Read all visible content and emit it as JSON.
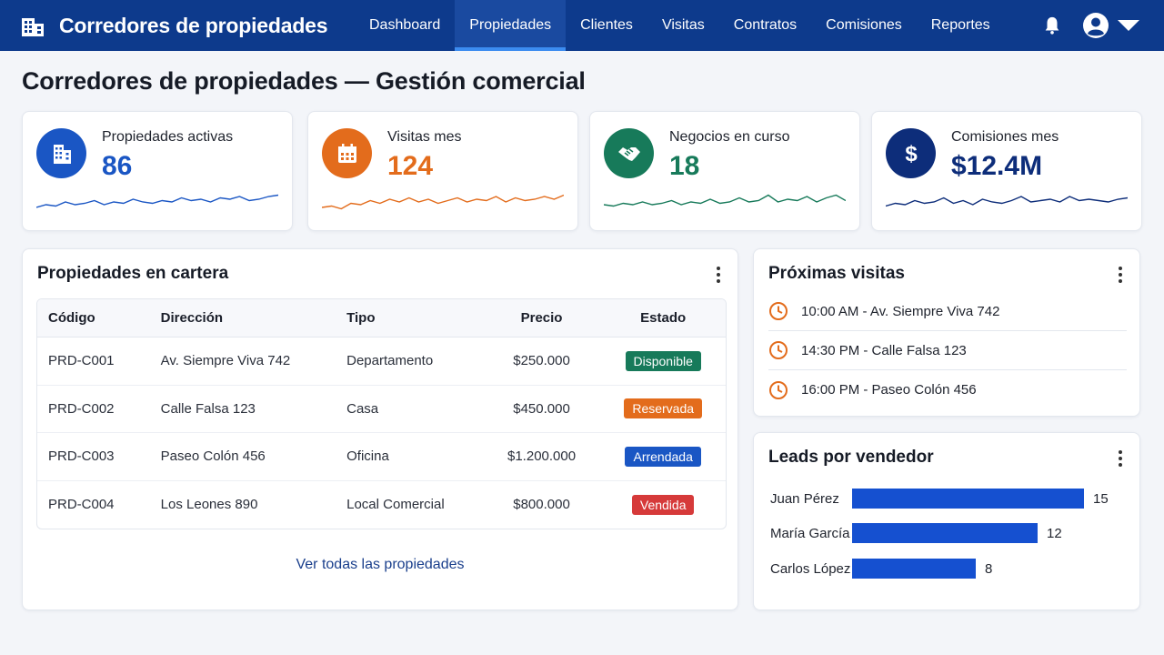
{
  "app": {
    "title": "Corredores de propiedades"
  },
  "nav": [
    {
      "label": "Dashboard",
      "active": false
    },
    {
      "label": "Propiedades",
      "active": true
    },
    {
      "label": "Clientes",
      "active": false
    },
    {
      "label": "Visitas",
      "active": false
    },
    {
      "label": "Contratos",
      "active": false
    },
    {
      "label": "Comisiones",
      "active": false
    },
    {
      "label": "Reportes",
      "active": false
    }
  ],
  "page": {
    "title": "Corredores de propiedades — Gestión comercial"
  },
  "kpis": [
    {
      "label": "Propiedades activas",
      "value": "86",
      "icon": "building-icon",
      "color": "#1a56c4",
      "spark": [
        0.3,
        0.4,
        0.35,
        0.5,
        0.4,
        0.45,
        0.55,
        0.4,
        0.5,
        0.45,
        0.6,
        0.5,
        0.45,
        0.55,
        0.5,
        0.65,
        0.55,
        0.6,
        0.5,
        0.65,
        0.6,
        0.7,
        0.55,
        0.6,
        0.7,
        0.75
      ]
    },
    {
      "label": "Visitas mes",
      "value": "124",
      "icon": "calendar-icon",
      "color": "#e36c1c",
      "spark": [
        0.3,
        0.35,
        0.25,
        0.45,
        0.4,
        0.55,
        0.45,
        0.6,
        0.5,
        0.65,
        0.5,
        0.6,
        0.45,
        0.55,
        0.65,
        0.5,
        0.6,
        0.55,
        0.7,
        0.5,
        0.65,
        0.55,
        0.6,
        0.7,
        0.6,
        0.75
      ]
    },
    {
      "label": "Negocios en curso",
      "value": "18",
      "icon": "handshake-icon",
      "color": "#177a5a",
      "spark": [
        0.4,
        0.35,
        0.45,
        0.4,
        0.5,
        0.4,
        0.45,
        0.55,
        0.4,
        0.5,
        0.45,
        0.6,
        0.45,
        0.5,
        0.65,
        0.5,
        0.55,
        0.75,
        0.5,
        0.6,
        0.55,
        0.7,
        0.5,
        0.65,
        0.75,
        0.55
      ]
    },
    {
      "label": "Comisiones mes",
      "value": "$12.4M",
      "icon": "dollar-icon",
      "color": "#0d2d7a",
      "spark": [
        0.35,
        0.45,
        0.4,
        0.55,
        0.45,
        0.5,
        0.65,
        0.45,
        0.55,
        0.4,
        0.6,
        0.5,
        0.45,
        0.55,
        0.7,
        0.5,
        0.55,
        0.6,
        0.5,
        0.7,
        0.55,
        0.6,
        0.55,
        0.5,
        0.6,
        0.65
      ]
    }
  ],
  "properties": {
    "title": "Propiedades en cartera",
    "columns": [
      "Código",
      "Dirección",
      "Tipo",
      "Precio",
      "Estado"
    ],
    "rows": [
      {
        "code": "PRD-C001",
        "address": "Av. Siempre Viva 742",
        "type": "Departamento",
        "price": "$250.000",
        "status": "Disponible",
        "status_color": "#177a5a"
      },
      {
        "code": "PRD-C002",
        "address": "Calle Falsa 123",
        "type": "Casa",
        "price": "$450.000",
        "status": "Reservada",
        "status_color": "#e36c1c"
      },
      {
        "code": "PRD-C003",
        "address": "Paseo Colón 456",
        "type": "Oficina",
        "price": "$1.200.000",
        "status": "Arrendada",
        "status_color": "#1a56c4"
      },
      {
        "code": "PRD-C004",
        "address": "Los Leones 890",
        "type": "Local Comercial",
        "price": "$800.000",
        "status": "Vendida",
        "status_color": "#d63a3a"
      }
    ],
    "view_all": "Ver todas las propiedades"
  },
  "visits": {
    "title": "Próximas visitas",
    "items": [
      "10:00 AM - Av. Siempre Viva 742",
      "14:30 PM - Calle Falsa 123",
      "16:00 PM - Paseo Colón 456"
    ]
  },
  "leads": {
    "title": "Leads por vendedor",
    "max": 15,
    "items": [
      {
        "name": "Juan Pérez",
        "value": 15
      },
      {
        "name": "María García",
        "value": 12
      },
      {
        "name": "Carlos López",
        "value": 8
      }
    ]
  },
  "colors": {
    "topbar": "#0d3a8c",
    "accent": "#3c8cf0",
    "link": "#1a3f8c",
    "visit_icon": "#e36c1c"
  }
}
